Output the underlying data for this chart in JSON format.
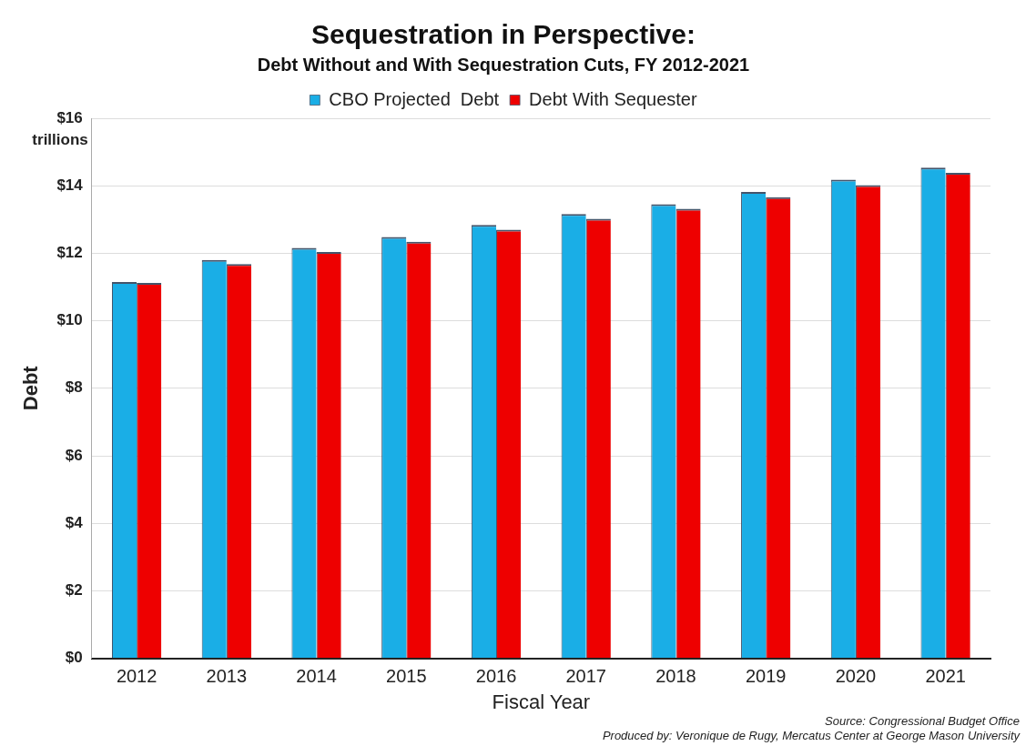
{
  "chart_data": {
    "type": "bar",
    "title": "Sequestration in Perspective:",
    "subtitle": "Debt Without and With Sequestration Cuts, FY 2012-2021",
    "xlabel": "Fiscal Year",
    "ylabel": "Debt",
    "categories": [
      "2012",
      "2013",
      "2014",
      "2015",
      "2016",
      "2017",
      "2018",
      "2019",
      "2020",
      "2021"
    ],
    "series": [
      {
        "name": "CBO Projected  Debt",
        "color": "#1aaee6",
        "values": [
          11.15,
          11.8,
          12.16,
          12.48,
          12.84,
          13.16,
          13.45,
          13.82,
          14.18,
          14.54
        ]
      },
      {
        "name": "Debt With Sequester",
        "color": "#ee0000",
        "values": [
          11.12,
          11.68,
          12.04,
          12.34,
          12.7,
          13.02,
          13.32,
          13.66,
          14.02,
          14.38
        ]
      }
    ],
    "ylim": [
      0,
      16
    ],
    "yticks": [
      {
        "value": 0,
        "label": "$0"
      },
      {
        "value": 2,
        "label": "$2"
      },
      {
        "value": 4,
        "label": "$4"
      },
      {
        "value": 6,
        "label": "$6"
      },
      {
        "value": 8,
        "label": "$8"
      },
      {
        "value": 10,
        "label": "$10"
      },
      {
        "value": 12,
        "label": "$12"
      },
      {
        "value": 14,
        "label": "$14"
      },
      {
        "value": 16,
        "label": "$16"
      }
    ],
    "grid": "y",
    "legend": "top",
    "annotations": [
      "trillions",
      "Source: Congressional Budget Office",
      "Produced by: Veronique de Rugy, Mercatus Center at George Mason University"
    ]
  }
}
